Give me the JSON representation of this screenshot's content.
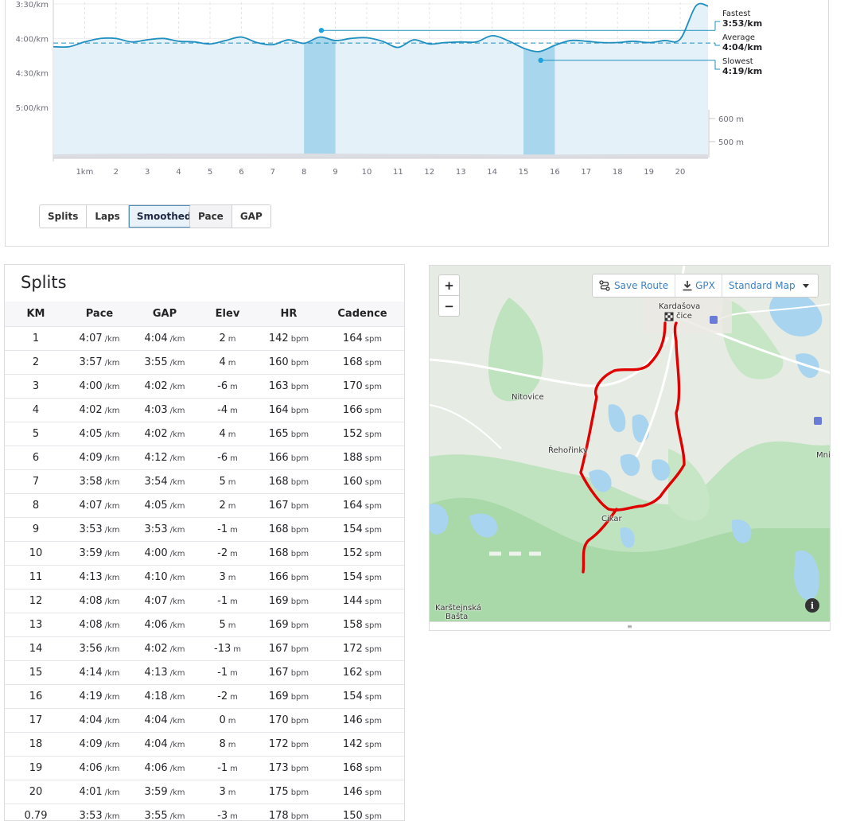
{
  "chart_data": {
    "type": "area",
    "x": [
      0.5,
      1,
      1.5,
      2,
      2.5,
      3,
      3.5,
      4,
      4.5,
      5,
      5.5,
      6,
      6.5,
      7,
      7.5,
      8,
      8.5,
      9,
      9.5,
      10,
      10.5,
      11,
      11.5,
      12,
      12.5,
      13,
      13.5,
      14,
      14.5,
      15,
      15.5,
      16,
      16.5,
      17,
      17.5,
      18,
      18.5,
      19,
      19.5,
      20,
      20.5
    ],
    "y": [
      4.12,
      4.05,
      4.0,
      4.0,
      4.05,
      4.02,
      4.0,
      4.04,
      4.05,
      4.08,
      4.03,
      3.98,
      4.06,
      4.09,
      4.02,
      4.07,
      3.98,
      4.03,
      4.0,
      3.99,
      4.04,
      4.13,
      4.02,
      4.08,
      4.06,
      4.05,
      4.05,
      3.96,
      4.03,
      4.14,
      4.19,
      4.1,
      4.03,
      4.04,
      4.06,
      4.06,
      4.04,
      4.06,
      4.03,
      4.01,
      3.53
    ],
    "y_ticks": [
      "3:30/km",
      "4:00/km",
      "4:30/km",
      "5:00/km"
    ],
    "x_ticks": [
      "1km",
      "2",
      "3",
      "4",
      "5",
      "6",
      "7",
      "8",
      "9",
      "10",
      "11",
      "12",
      "13",
      "14",
      "15",
      "16",
      "17",
      "18",
      "19",
      "20"
    ],
    "elev_ticks": [
      "600 m",
      "500 m"
    ],
    "annotations": [
      {
        "label": "Fastest",
        "value": "3:53/km"
      },
      {
        "label": "Average",
        "value": "4:04/km"
      },
      {
        "label": "Slowest",
        "value": "4:19/km"
      }
    ],
    "highlighted_kms": [
      8,
      15
    ],
    "line_color": "#1f8fbf",
    "fill_color": "#e4f1f8",
    "highlight_color": "#a8d6ec"
  },
  "controls": {
    "view_group": [
      {
        "label": "Splits",
        "active": false
      },
      {
        "label": "Laps",
        "active": false
      },
      {
        "label": "Smoothed",
        "active": true
      }
    ],
    "metric_group": [
      {
        "label": "Pace",
        "active": true
      },
      {
        "label": "GAP",
        "active": false
      }
    ]
  },
  "splits": {
    "title": "Splits",
    "headers": [
      "KM",
      "Pace",
      "GAP",
      "Elev",
      "HR",
      "Cadence"
    ],
    "units": {
      "pace": "/km",
      "elev": "m",
      "hr": "bpm",
      "cad": "spm"
    },
    "rows": [
      [
        "1",
        "4:07",
        "4:04",
        "2",
        "142",
        "164"
      ],
      [
        "2",
        "3:57",
        "3:55",
        "4",
        "160",
        "168"
      ],
      [
        "3",
        "4:00",
        "4:02",
        "-6",
        "163",
        "170"
      ],
      [
        "4",
        "4:02",
        "4:03",
        "-4",
        "164",
        "166"
      ],
      [
        "5",
        "4:05",
        "4:02",
        "4",
        "165",
        "152"
      ],
      [
        "6",
        "4:09",
        "4:12",
        "-6",
        "166",
        "188"
      ],
      [
        "7",
        "3:58",
        "3:54",
        "5",
        "168",
        "160"
      ],
      [
        "8",
        "4:07",
        "4:05",
        "2",
        "167",
        "164"
      ],
      [
        "9",
        "3:53",
        "3:53",
        "-1",
        "168",
        "154"
      ],
      [
        "10",
        "3:59",
        "4:00",
        "-2",
        "168",
        "152"
      ],
      [
        "11",
        "4:13",
        "4:10",
        "3",
        "166",
        "154"
      ],
      [
        "12",
        "4:08",
        "4:07",
        "-1",
        "169",
        "144"
      ],
      [
        "13",
        "4:08",
        "4:06",
        "5",
        "169",
        "158"
      ],
      [
        "14",
        "3:56",
        "4:02",
        "-13",
        "167",
        "172"
      ],
      [
        "15",
        "4:14",
        "4:13",
        "-1",
        "167",
        "162"
      ],
      [
        "16",
        "4:19",
        "4:18",
        "-2",
        "169",
        "154"
      ],
      [
        "17",
        "4:04",
        "4:04",
        "0",
        "170",
        "146"
      ],
      [
        "18",
        "4:09",
        "4:04",
        "8",
        "172",
        "142"
      ],
      [
        "19",
        "4:06",
        "4:06",
        "-1",
        "173",
        "168"
      ],
      [
        "20",
        "4:01",
        "3:59",
        "3",
        "175",
        "146"
      ],
      [
        "0.79",
        "3:53",
        "3:55",
        "-3",
        "178",
        "150"
      ]
    ]
  },
  "map": {
    "zoom_in": "+",
    "zoom_out": "−",
    "save_route": "Save Route",
    "gpx": "GPX",
    "map_type": "Standard Map",
    "info": "i",
    "places": [
      "Kardašova",
      "čice",
      "Nitovice",
      "Řehořinky",
      "Cikar",
      "Karštejnská",
      "Bašta",
      "Mnic"
    ],
    "route_color": "#e00000"
  }
}
